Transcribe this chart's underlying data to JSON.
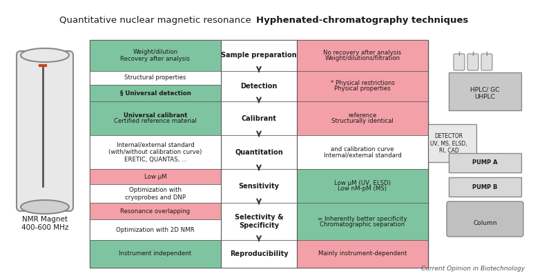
{
  "title_left": "Quantitative nuclear magnetic resonance",
  "title_right": "Hyphenated-chromatography techniques",
  "footer": "Current Opinion in Biotechnology",
  "bg_color": "#ffffff",
  "table_border": "#333333",
  "green_color": "#7fc4a0",
  "red_color": "#f4a0a8",
  "white_color": "#ffffff",
  "rows": [
    {
      "center_label": "Sample preparation",
      "left_top_text": "Weight/dilution\nRecovery after analysis",
      "left_top_color": "#7fc4a0",
      "left_bottom_text": null,
      "left_bottom_color": null,
      "right_top_text": "Weight/dilutions/filtration\nNo recovery after analysis",
      "right_top_color": "#f4a0a8",
      "right_bottom_text": null,
      "right_bottom_color": null
    },
    {
      "center_label": "Detection",
      "left_top_text": "Structural properties",
      "left_top_color": "#ffffff",
      "left_bottom_text": "§ Universal detection",
      "left_bottom_color": "#7fc4a0",
      "right_top_text": "Physical properties\n* Physical restrictions",
      "right_top_color": "#f4a0a8",
      "right_bottom_text": null,
      "right_bottom_color": null
    },
    {
      "center_label": "Calibrant",
      "left_top_text": "Certified reference material\nUniversal calibrant",
      "left_top_color": "#7fc4a0",
      "left_bottom_text": null,
      "left_bottom_color": null,
      "right_top_text": "Structurally identical\nreference",
      "right_top_color": "#f4a0a8",
      "right_bottom_text": null,
      "right_bottom_color": null
    },
    {
      "center_label": "Quantitation",
      "left_top_text": "Internal/external standard\n(with/without calibration curve)\nERETIC, QUANTAS, ...",
      "left_top_color": "#ffffff",
      "left_bottom_text": null,
      "left_bottom_color": null,
      "right_top_text": "Internal/external standard\nand calibration curve",
      "right_top_color": "#ffffff",
      "right_bottom_text": null,
      "right_bottom_color": null
    },
    {
      "center_label": "Sensitivity",
      "left_top_text": "Low μM",
      "left_top_color": "#f4a0a8",
      "left_bottom_text": "Optimization with\ncryoprobes and DNP",
      "left_bottom_color": "#ffffff",
      "right_top_text": "Low nM-pM (MS)\nLow μM (UV, ELSD)",
      "right_top_color": "#7fc4a0",
      "right_bottom_text": null,
      "right_bottom_color": null
    },
    {
      "center_label": "Selectivity &\nSpecificity",
      "left_top_text": "Resonance overlapping",
      "left_top_color": "#f4a0a8",
      "left_bottom_text": "Optimization with 2D NMR",
      "left_bottom_color": "#ffffff",
      "right_top_text": "Chromatographic separation\n= Inherently better specificity",
      "right_top_color": "#7fc4a0",
      "right_bottom_text": null,
      "right_bottom_color": null
    },
    {
      "center_label": "Reproducibility",
      "left_top_text": "Instrument independent",
      "left_top_color": "#7fc4a0",
      "left_bottom_text": null,
      "left_bottom_color": null,
      "right_top_text": "Mainly instrument-dependent",
      "right_top_color": "#f4a0a8",
      "right_bottom_text": null,
      "right_bottom_color": null
    }
  ]
}
